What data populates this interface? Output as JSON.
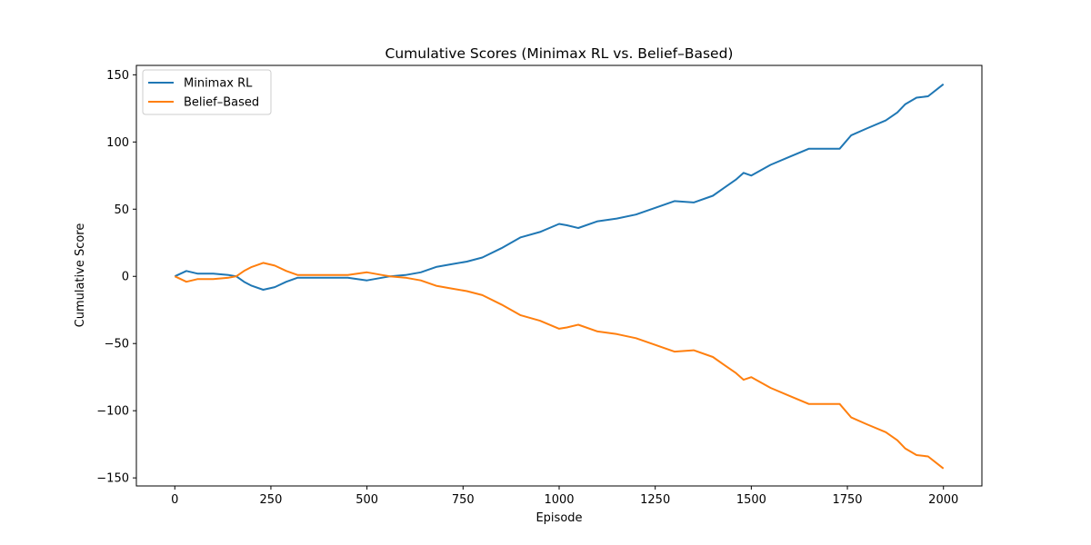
{
  "chart_data": {
    "type": "line",
    "title": "Cumulative Scores (Minimax RL vs. Belief–Based)",
    "xlabel": "Episode",
    "ylabel": "Cumulative Score",
    "xlim": [
      -100,
      2100
    ],
    "ylim": [
      -156,
      157
    ],
    "xticks": [
      0,
      250,
      500,
      750,
      1000,
      1250,
      1500,
      1750,
      2000
    ],
    "yticks": [
      -150,
      -100,
      -50,
      0,
      50,
      100,
      150
    ],
    "xtick_labels": [
      "0",
      "250",
      "500",
      "750",
      "1000",
      "1250",
      "1500",
      "1750",
      "2000"
    ],
    "ytick_labels": [
      "−150",
      "−100",
      "−50",
      "0",
      "50",
      "100",
      "150"
    ],
    "grid": false,
    "legend_position": "top-left",
    "series": [
      {
        "name": "Minimax RL",
        "color": "#1f77b4",
        "x": [
          0,
          30,
          60,
          100,
          140,
          160,
          180,
          200,
          230,
          260,
          290,
          320,
          360,
          400,
          450,
          500,
          540,
          560,
          600,
          640,
          680,
          720,
          760,
          800,
          850,
          900,
          950,
          1000,
          1020,
          1050,
          1100,
          1150,
          1200,
          1250,
          1300,
          1350,
          1400,
          1430,
          1460,
          1480,
          1500,
          1550,
          1600,
          1650,
          1700,
          1730,
          1760,
          1800,
          1850,
          1880,
          1900,
          1930,
          1960,
          2000
        ],
        "y": [
          0,
          4,
          2,
          2,
          1,
          0,
          -4,
          -7,
          -10,
          -8,
          -4,
          -1,
          -1,
          -1,
          -1,
          -3,
          -1,
          0,
          1,
          3,
          7,
          9,
          11,
          14,
          21,
          29,
          33,
          39,
          38,
          36,
          41,
          43,
          46,
          51,
          56,
          55,
          60,
          66,
          72,
          77,
          75,
          83,
          89,
          95,
          95,
          95,
          105,
          110,
          116,
          122,
          128,
          133,
          134,
          143
        ]
      },
      {
        "name": "Belief–Based",
        "color": "#ff7f0e",
        "x": [
          0,
          30,
          60,
          100,
          140,
          160,
          180,
          200,
          230,
          260,
          290,
          320,
          360,
          400,
          450,
          500,
          540,
          560,
          600,
          640,
          680,
          720,
          760,
          800,
          850,
          900,
          950,
          1000,
          1020,
          1050,
          1100,
          1150,
          1200,
          1250,
          1300,
          1350,
          1400,
          1430,
          1460,
          1480,
          1500,
          1550,
          1600,
          1650,
          1700,
          1730,
          1760,
          1800,
          1850,
          1880,
          1900,
          1930,
          1960,
          2000
        ],
        "y": [
          0,
          -4,
          -2,
          -2,
          -1,
          0,
          4,
          7,
          10,
          8,
          4,
          1,
          1,
          1,
          1,
          3,
          1,
          0,
          -1,
          -3,
          -7,
          -9,
          -11,
          -14,
          -21,
          -29,
          -33,
          -39,
          -38,
          -36,
          -41,
          -43,
          -46,
          -51,
          -56,
          -55,
          -60,
          -66,
          -72,
          -77,
          -75,
          -83,
          -89,
          -95,
          -95,
          -95,
          -105,
          -110,
          -116,
          -122,
          -128,
          -133,
          -134,
          -143
        ]
      }
    ]
  }
}
